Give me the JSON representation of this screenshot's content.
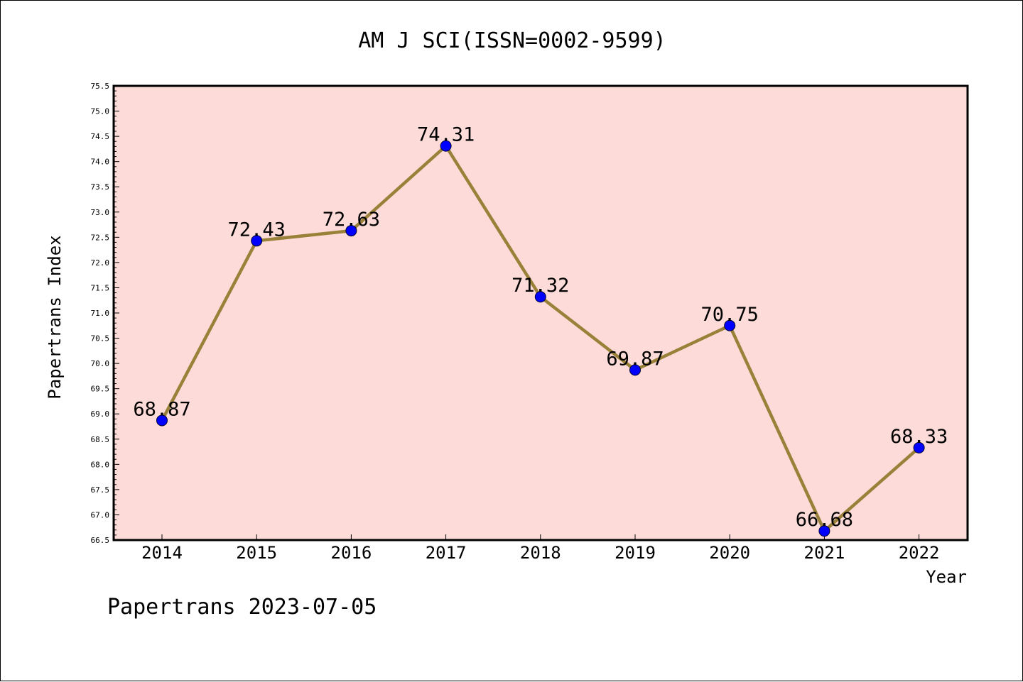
{
  "chart_data": {
    "type": "line",
    "title": "AM J SCI(ISSN=0002-9599)",
    "xlabel": "Year",
    "ylabel": "Papertrans Index",
    "categories": [
      "2014",
      "2015",
      "2016",
      "2017",
      "2018",
      "2019",
      "2020",
      "2021",
      "2022"
    ],
    "values": [
      68.87,
      72.43,
      72.63,
      74.31,
      71.32,
      69.87,
      70.75,
      66.68,
      68.33
    ],
    "data_labels": [
      "68.87",
      "72.43",
      "72.63",
      "74.31",
      "71.32",
      "69.87",
      "70.75",
      "66.68",
      "68.33"
    ],
    "ylim": [
      66.5,
      75.5
    ],
    "yticks": [
      "66.5",
      "67.0",
      "67.5",
      "68.0",
      "68.5",
      "69.0",
      "69.5",
      "70.0",
      "70.5",
      "71.0",
      "71.5",
      "72.0",
      "72.5",
      "73.0",
      "73.5",
      "74.0",
      "74.5",
      "75.0",
      "75.5"
    ],
    "grid": false,
    "legend": "none",
    "colors": {
      "plot_background": "#fddbd8",
      "line": "#9a8139",
      "marker": "#0000ff",
      "axes": "#000000"
    }
  },
  "footer": {
    "text": "Papertrans 2023-07-05"
  }
}
